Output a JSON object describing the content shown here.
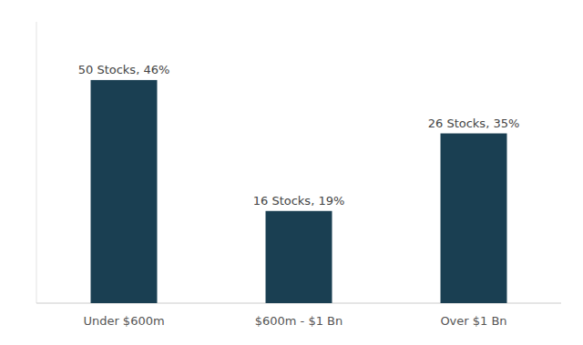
{
  "chart_data": {
    "type": "bar",
    "categories": [
      "Under $600m",
      "$600m - $1 Bn",
      "Over $1 Bn"
    ],
    "values": [
      46,
      19,
      35
    ],
    "value_labels": [
      "50 Stocks, 46%",
      "16 Stocks, 19%",
      "26 Stocks, 35%"
    ],
    "data_labels": true,
    "color": "#1a3f52",
    "ylim": [
      0,
      58
    ],
    "grid": false,
    "tick_labels": "x"
  }
}
